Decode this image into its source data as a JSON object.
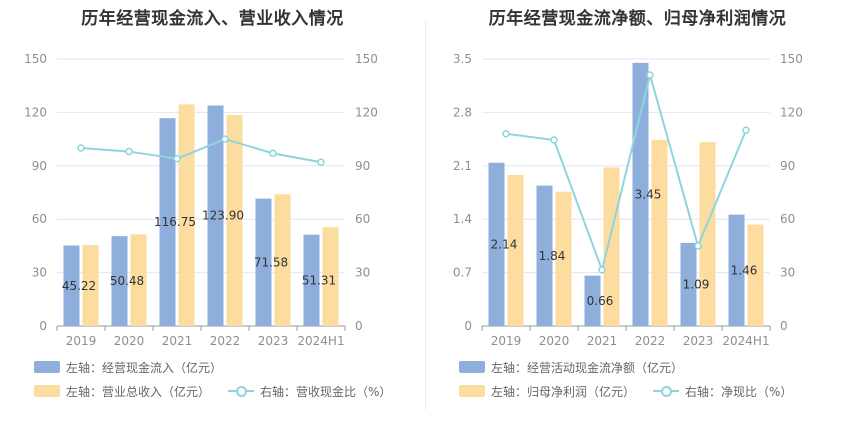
{
  "colors": {
    "bar1": "#8eaedc",
    "bar2": "#fddca0",
    "line": "#8ed5de",
    "grid": "#e6e6ee",
    "axis": "#9a9a9a"
  },
  "chart_data": [
    {
      "type": "bar",
      "title": "历年经营现金流入、营业收入情况",
      "categories": [
        "2019",
        "2020",
        "2021",
        "2022",
        "2023",
        "2024H1"
      ],
      "left_axis": {
        "ticks": [
          "0",
          "30",
          "60",
          "90",
          "120",
          "150"
        ],
        "ylim": [
          0,
          150
        ]
      },
      "right_axis": {
        "ticks": [
          "0",
          "30",
          "60",
          "90",
          "120",
          "150"
        ],
        "ylim": [
          0,
          150
        ]
      },
      "series": [
        {
          "name": "左轴：经营现金流入（亿元）",
          "axis": "left",
          "kind": "bar",
          "values": [
            45.22,
            50.48,
            116.75,
            123.9,
            71.58,
            51.31
          ],
          "labels": [
            "45.22",
            "50.48",
            "116.75",
            "123.90",
            "71.58",
            "51.31"
          ]
        },
        {
          "name": "左轴：营业总收入（亿元）",
          "axis": "left",
          "kind": "bar",
          "values": [
            45.5,
            51.5,
            124.5,
            118.5,
            74.0,
            55.5
          ]
        },
        {
          "name": "右轴：营收现金比（%）",
          "axis": "right",
          "kind": "line",
          "values": [
            100,
            98,
            94,
            105,
            97,
            92
          ]
        }
      ],
      "legend": [
        "左轴：经营现金流入（亿元）",
        "左轴：营业总收入（亿元）",
        "右轴：营收现金比（%）"
      ]
    },
    {
      "type": "bar",
      "title": "历年经营现金流净额、归母净利润情况",
      "categories": [
        "2019",
        "2020",
        "2021",
        "2022",
        "2023",
        "2024H1"
      ],
      "left_axis": {
        "ticks": [
          "0",
          "0.7",
          "1.4",
          "2.1",
          "2.8",
          "3.5"
        ],
        "ylim": [
          0,
          3.5
        ]
      },
      "right_axis": {
        "ticks": [
          "0",
          "30",
          "60",
          "90",
          "120",
          "150"
        ],
        "ylim": [
          0,
          150
        ]
      },
      "series": [
        {
          "name": "左轴：经营活动现金流净额（亿元）",
          "axis": "left",
          "kind": "bar",
          "values": [
            2.14,
            1.84,
            0.66,
            3.45,
            1.09,
            1.46
          ],
          "labels": [
            "2.14",
            "1.84",
            "0.66",
            "3.45",
            "1.09",
            "1.46"
          ]
        },
        {
          "name": "左轴：归母净利润（亿元）",
          "axis": "left",
          "kind": "bar",
          "values": [
            1.98,
            1.76,
            2.08,
            2.44,
            2.41,
            1.33
          ]
        },
        {
          "name": "右轴：净现比（%）",
          "axis": "right",
          "kind": "line",
          "values": [
            108,
            104.5,
            31.5,
            141,
            45,
            110
          ]
        }
      ],
      "legend": [
        "左轴：经营活动现金流净额（亿元）",
        "左轴：归母净利润（亿元）",
        "右轴：净现比（%）"
      ]
    }
  ]
}
